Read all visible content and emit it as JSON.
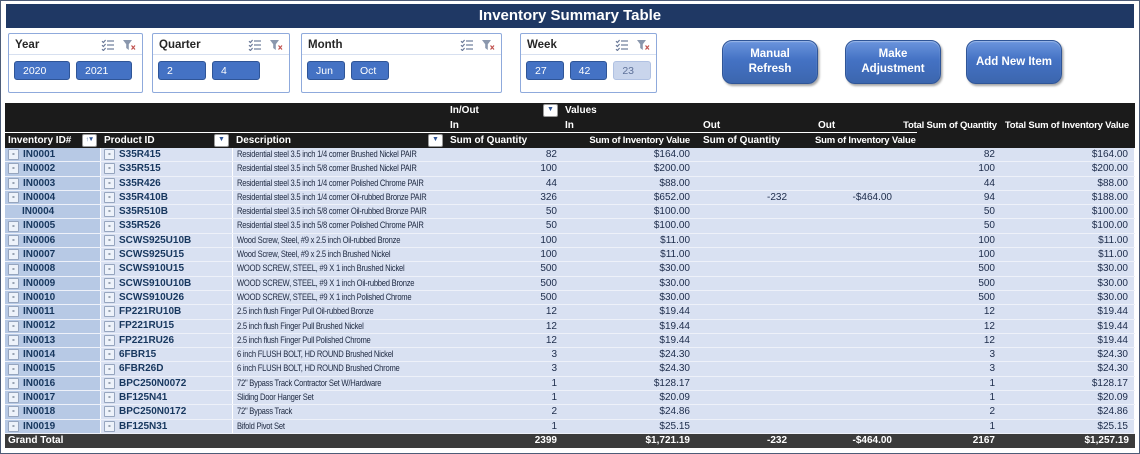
{
  "title": "Inventory Summary Table",
  "icons": {
    "dropdown": "▼",
    "collapse": "-",
    "sort_asc": "↑",
    "multiselect": "multiselect-icon",
    "clear_filter": "clear-filter-icon"
  },
  "colors": {
    "title_bar": "#1F3864",
    "slicer_selected": "#4472C4",
    "slicer_unselected": "#C9D5EC",
    "header_bg": "#1B1B1B",
    "row_bg": "#D9E1F2",
    "row_id_bg": "#B7C9E5",
    "grand_total_bg": "#3B3B3B",
    "button_bg": "#4472C4"
  },
  "slicers": [
    {
      "name": "Year",
      "items": [
        {
          "label": "2020",
          "state": "selected"
        },
        {
          "label": "2021",
          "state": "selected"
        }
      ]
    },
    {
      "name": "Quarter",
      "items": [
        {
          "label": "2",
          "state": "selected"
        },
        {
          "label": "4",
          "state": "selected"
        }
      ]
    },
    {
      "name": "Month",
      "items": [
        {
          "label": "Jun",
          "state": "selected"
        },
        {
          "label": "Oct",
          "state": "selected"
        }
      ]
    },
    {
      "name": "Week",
      "items": [
        {
          "label": "27",
          "state": "selected"
        },
        {
          "label": "42",
          "state": "selected"
        },
        {
          "label": "23",
          "state": "unselected"
        }
      ]
    }
  ],
  "buttons": {
    "refresh": "Manual Refresh",
    "adjust": "Make Adjustment",
    "add": "Add New Item"
  },
  "pivot": {
    "filter_field": "In/Out",
    "values_label": "Values",
    "col_groups": {
      "in1": "In",
      "in2": "In",
      "out1": "Out",
      "out2": "Out",
      "total_qty": "Total Sum of Quantity",
      "total_val": "Total Sum of Inventory Value"
    },
    "row_headers": {
      "id": "Inventory ID#",
      "product": "Product ID",
      "desc": "Description"
    },
    "value_headers": {
      "q1": "Sum of Quantity",
      "v1": "Sum of Inventory Value",
      "q2": "Sum of Quantity",
      "v2": "Sum of Inventory Value"
    },
    "rows": [
      {
        "id": "IN0001",
        "box": true,
        "product": "S35R415",
        "desc": "Residential steel 3.5 inch 1/4 corner Brushed Nickel PAIR",
        "in_qty": "82",
        "in_val": "$164.00",
        "out_qty": "",
        "out_val": "",
        "total_qty": "82",
        "total_val": "$164.00"
      },
      {
        "id": "IN0002",
        "box": true,
        "product": "S35R515",
        "desc": "Residential steel 3.5 inch 5/8 corner Brushed Nickel PAIR",
        "in_qty": "100",
        "in_val": "$200.00",
        "out_qty": "",
        "out_val": "",
        "total_qty": "100",
        "total_val": "$200.00"
      },
      {
        "id": "IN0003",
        "box": true,
        "product": "S35R426",
        "desc": "Residential steel 3.5 inch 1/4 corner Polished Chrome PAIR",
        "in_qty": "44",
        "in_val": "$88.00",
        "out_qty": "",
        "out_val": "",
        "total_qty": "44",
        "total_val": "$88.00"
      },
      {
        "id": "IN0004",
        "box": true,
        "product": "S35R410B",
        "desc": "Residential steel 3.5 inch 1/4 corner Oil-rubbed Bronze PAIR",
        "in_qty": "326",
        "in_val": "$652.00",
        "out_qty": "-232",
        "out_val": "-$464.00",
        "total_qty": "94",
        "total_val": "$188.00"
      },
      {
        "id": "IN0004",
        "box": false,
        "product": "S35R510B",
        "desc": "Residential steel 3.5 inch 5/8 corner Oil-rubbed Bronze PAIR",
        "in_qty": "50",
        "in_val": "$100.00",
        "out_qty": "",
        "out_val": "",
        "total_qty": "50",
        "total_val": "$100.00"
      },
      {
        "id": "IN0005",
        "box": true,
        "product": "S35R526",
        "desc": "Residential steel 3.5 inch 5/8 corner Polished Chrome PAIR",
        "in_qty": "50",
        "in_val": "$100.00",
        "out_qty": "",
        "out_val": "",
        "total_qty": "50",
        "total_val": "$100.00"
      },
      {
        "id": "IN0006",
        "box": true,
        "product": "SCWS925U10B",
        "desc": "Wood Screw, Steel, #9 x 2.5 inch Oil-rubbed Bronze",
        "in_qty": "100",
        "in_val": "$11.00",
        "out_qty": "",
        "out_val": "",
        "total_qty": "100",
        "total_val": "$11.00"
      },
      {
        "id": "IN0007",
        "box": true,
        "product": "SCWS925U15",
        "desc": "Wood Screw, Steel, #9 x 2.5 inch Brushed Nickel",
        "in_qty": "100",
        "in_val": "$11.00",
        "out_qty": "",
        "out_val": "",
        "total_qty": "100",
        "total_val": "$11.00"
      },
      {
        "id": "IN0008",
        "box": true,
        "product": "SCWS910U15",
        "desc": "WOOD SCREW, STEEL, #9 X 1 inch  Brushed Nickel",
        "in_qty": "500",
        "in_val": "$30.00",
        "out_qty": "",
        "out_val": "",
        "total_qty": "500",
        "total_val": "$30.00"
      },
      {
        "id": "IN0009",
        "box": true,
        "product": "SCWS910U10B",
        "desc": "WOOD SCREW, STEEL, #9 X 1 inch  Oil-rubbed Bronze",
        "in_qty": "500",
        "in_val": "$30.00",
        "out_qty": "",
        "out_val": "",
        "total_qty": "500",
        "total_val": "$30.00"
      },
      {
        "id": "IN0010",
        "box": true,
        "product": "SCWS910U26",
        "desc": "WOOD SCREW, STEEL, #9 X 1 inch  Polished Chrome",
        "in_qty": "500",
        "in_val": "$30.00",
        "out_qty": "",
        "out_val": "",
        "total_qty": "500",
        "total_val": "$30.00"
      },
      {
        "id": "IN0011",
        "box": true,
        "product": "FP221RU10B",
        "desc": "2.5 inch flush Finger Pull  Oil-rubbed Bronze",
        "in_qty": "12",
        "in_val": "$19.44",
        "out_qty": "",
        "out_val": "",
        "total_qty": "12",
        "total_val": "$19.44"
      },
      {
        "id": "IN0012",
        "box": true,
        "product": "FP221RU15",
        "desc": "2.5 inch flush Finger Pull  Brushed Nickel",
        "in_qty": "12",
        "in_val": "$19.44",
        "out_qty": "",
        "out_val": "",
        "total_qty": "12",
        "total_val": "$19.44"
      },
      {
        "id": "IN0013",
        "box": true,
        "product": "FP221RU26",
        "desc": "2.5 inch flush Finger Pull  Polished Chrome",
        "in_qty": "12",
        "in_val": "$19.44",
        "out_qty": "",
        "out_val": "",
        "total_qty": "12",
        "total_val": "$19.44"
      },
      {
        "id": "IN0014",
        "box": true,
        "product": "6FBR15",
        "desc": "6 inch FLUSH BOLT, HD ROUND Brushed Nickel",
        "in_qty": "3",
        "in_val": "$24.30",
        "out_qty": "",
        "out_val": "",
        "total_qty": "3",
        "total_val": "$24.30"
      },
      {
        "id": "IN0015",
        "box": true,
        "product": "6FBR26D",
        "desc": "6 inch FLUSH BOLT, HD ROUND Brushed Chrome",
        "in_qty": "3",
        "in_val": "$24.30",
        "out_qty": "",
        "out_val": "",
        "total_qty": "3",
        "total_val": "$24.30"
      },
      {
        "id": "IN0016",
        "box": true,
        "product": "BPC250N0072",
        "desc": "72\" Bypass Track Contractor Set W/Hardware",
        "in_qty": "1",
        "in_val": "$128.17",
        "out_qty": "",
        "out_val": "",
        "total_qty": "1",
        "total_val": "$128.17"
      },
      {
        "id": "IN0017",
        "box": true,
        "product": "BF125N41",
        "desc": "Sliding Door Hanger Set",
        "in_qty": "1",
        "in_val": "$20.09",
        "out_qty": "",
        "out_val": "",
        "total_qty": "1",
        "total_val": "$20.09"
      },
      {
        "id": "IN0018",
        "box": true,
        "product": "BPC250N0172",
        "desc": "72\" Bypass Track",
        "in_qty": "2",
        "in_val": "$24.86",
        "out_qty": "",
        "out_val": "",
        "total_qty": "2",
        "total_val": "$24.86"
      },
      {
        "id": "IN0019",
        "box": true,
        "product": "BF125N31",
        "desc": "Bifold Pivot Set",
        "in_qty": "1",
        "in_val": "$25.15",
        "out_qty": "",
        "out_val": "",
        "total_qty": "1",
        "total_val": "$25.15"
      }
    ],
    "grand_total": {
      "label": "Grand Total",
      "in_qty": "2399",
      "in_val": "$1,721.19",
      "out_qty": "-232",
      "out_val": "-$464.00",
      "total_qty": "2167",
      "total_val": "$1,257.19"
    }
  }
}
